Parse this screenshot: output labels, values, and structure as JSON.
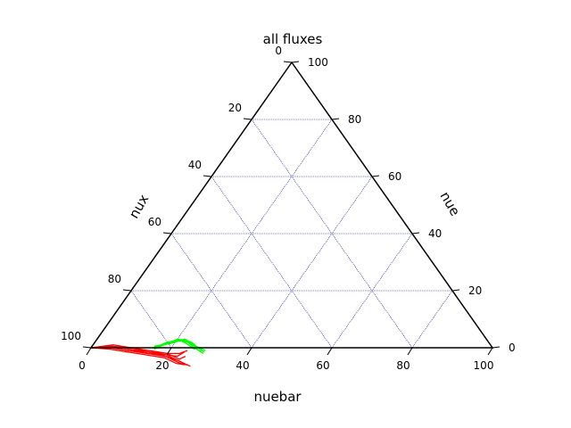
{
  "chart_data": {
    "type": "scatter",
    "subtype": "ternary",
    "title": "all fluxes",
    "axes": {
      "bottom": {
        "label": "nuebar",
        "ticks": [
          "0",
          "20",
          "40",
          "60",
          "80",
          "100"
        ]
      },
      "left": {
        "label": "nux",
        "ticks": [
          "100",
          "80",
          "60",
          "40",
          "20",
          "0"
        ]
      },
      "right": {
        "label": "nue",
        "ticks": [
          "0",
          "20",
          "40",
          "60",
          "80",
          "100"
        ]
      }
    },
    "grid": true,
    "grid_color": "#00008b",
    "frame_color": "#000000",
    "series": [
      {
        "color": "#00ff00",
        "curves": [
          [
            [
              16,
              84,
              0
            ],
            [
              17,
              82,
              1
            ],
            [
              18,
              80,
              2
            ],
            [
              19,
              79,
              2
            ],
            [
              20,
              77.5,
              2.5
            ],
            [
              22,
              75,
              3
            ],
            [
              25,
              74,
              1
            ],
            [
              29,
              72,
              -1
            ]
          ],
          [
            [
              16,
              84.5,
              -0.5
            ],
            [
              17,
              82.5,
              0.5
            ],
            [
              18.5,
              80,
              1.5
            ],
            [
              19.5,
              78.5,
              2
            ],
            [
              20.5,
              77,
              2.5
            ],
            [
              23,
              75,
              2
            ],
            [
              26.5,
              73.5,
              0
            ],
            [
              29,
              72.5,
              -1.5
            ]
          ],
          [
            [
              15.5,
              84.5,
              0
            ],
            [
              16.5,
              83,
              0.5
            ],
            [
              17.5,
              81,
              1.5
            ],
            [
              18.5,
              79.5,
              2
            ],
            [
              19.5,
              78,
              2.5
            ],
            [
              22,
              75.5,
              2.5
            ],
            [
              24,
              74,
              2
            ],
            [
              28,
              73,
              -1
            ]
          ],
          [
            [
              16,
              83.5,
              0.5
            ],
            [
              17.5,
              81.5,
              1
            ],
            [
              19,
              79.5,
              1.5
            ],
            [
              20,
              78,
              2
            ],
            [
              21,
              76.5,
              2.5
            ],
            [
              23,
              75.5,
              1.5
            ],
            [
              26,
              74.5,
              -0.5
            ],
            [
              27,
              73,
              0
            ]
          ],
          [
            [
              15.5,
              84,
              0.5
            ],
            [
              17,
              82,
              1
            ],
            [
              18,
              80.5,
              1.5
            ],
            [
              19,
              79,
              2
            ],
            [
              20,
              77,
              3
            ],
            [
              22.5,
              75,
              2.5
            ],
            [
              25,
              74.5,
              0.5
            ],
            [
              29,
              73,
              -2
            ]
          ]
        ]
      },
      {
        "color": "#ff0000",
        "curves": [
          [
            [
              0,
              100,
              0
            ],
            [
              5,
              95,
              0
            ],
            [
              10,
              91,
              -1
            ],
            [
              15,
              87,
              -2
            ],
            [
              20,
              83,
              -3
            ],
            [
              24,
              81,
              -5
            ],
            [
              26,
              80,
              -6
            ]
          ],
          [
            [
              0,
              100,
              0
            ],
            [
              5,
              94.5,
              0.5
            ],
            [
              10,
              90.5,
              -0.5
            ],
            [
              15,
              86.5,
              -1.5
            ],
            [
              20,
              82.5,
              -2.5
            ],
            [
              24,
              80.5,
              -4.5
            ],
            [
              26.5,
              79.5,
              -6
            ]
          ],
          [
            [
              0,
              100,
              0
            ],
            [
              5,
              95.5,
              -0.5
            ],
            [
              10,
              91.5,
              -1.5
            ],
            [
              15,
              87.5,
              -2.5
            ],
            [
              20,
              83.5,
              -3.5
            ],
            [
              24,
              81.5,
              -5.5
            ],
            [
              27,
              79,
              -6
            ]
          ],
          [
            [
              0,
              100,
              0
            ],
            [
              5,
              94,
              1
            ],
            [
              10,
              90,
              0
            ],
            [
              15,
              86,
              -1
            ],
            [
              20,
              82,
              -2
            ],
            [
              24,
              80,
              -4
            ],
            [
              25,
              78,
              -3
            ]
          ],
          [
            [
              0,
              100,
              0
            ],
            [
              5,
              95,
              0
            ],
            [
              10,
              91,
              -1
            ],
            [
              15,
              87,
              -2
            ],
            [
              20,
              82.5,
              -2.5
            ],
            [
              23,
              80,
              -3
            ],
            [
              24,
              77.5,
              -1.5
            ]
          ],
          [
            [
              0,
              100,
              0
            ],
            [
              5,
              94.5,
              0.5
            ],
            [
              10,
              90,
              0
            ],
            [
              15,
              86.5,
              -1.5
            ],
            [
              20,
              83,
              -3
            ],
            [
              24,
              80.5,
              -4.5
            ],
            [
              28,
              78.5,
              -6.5
            ]
          ],
          [
            [
              0,
              100,
              0
            ],
            [
              5,
              95,
              0
            ],
            [
              10,
              91,
              -1
            ],
            [
              15,
              86.5,
              -1.5
            ],
            [
              20,
              82,
              -2
            ],
            [
              23,
              79,
              -2
            ],
            [
              24.5,
              76.5,
              -1
            ]
          ]
        ]
      }
    ]
  }
}
